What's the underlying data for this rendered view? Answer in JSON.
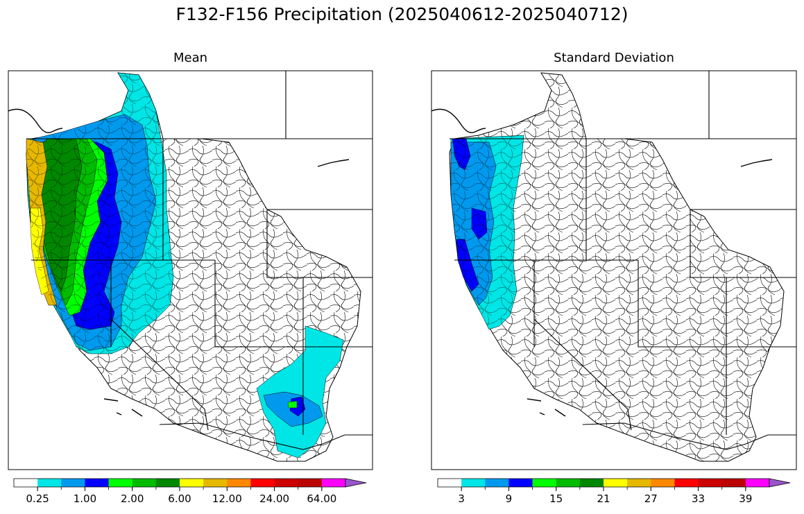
{
  "figure": {
    "title": "F132-F156 Precipitation (2025040612-2025040712)"
  },
  "panels": [
    {
      "id": "mean",
      "title": "Mean",
      "colorbar": {
        "colors": [
          "#ffffff",
          "#00e5e5",
          "#0099ee",
          "#0000ff",
          "#00ff00",
          "#00bb00",
          "#008800",
          "#ffff00",
          "#e6b800",
          "#ff8800",
          "#ff0000",
          "#cc0000",
          "#bb0000",
          "#ff00ff",
          "#9955cc"
        ],
        "tick_labels": [
          "0.25",
          "1.00",
          "2.00",
          "6.00",
          "12.00",
          "24.00",
          "64.00"
        ],
        "extend": "max"
      },
      "legend_levels": [
        "0",
        "0.1",
        "0.25",
        "0.5",
        "1.00",
        "1.5",
        "2.00",
        "4",
        "6.00",
        "8",
        "12.00",
        "16",
        "24.00",
        "32",
        "64.00",
        "96"
      ]
    },
    {
      "id": "stddev",
      "title": "Standard Deviation",
      "colorbar": {
        "colors": [
          "#ffffff",
          "#00e5e5",
          "#0099ee",
          "#0000ff",
          "#00ff00",
          "#00bb00",
          "#008800",
          "#ffff00",
          "#e6b800",
          "#ff8800",
          "#ff0000",
          "#cc0000",
          "#bb0000",
          "#ff00ff",
          "#9955cc"
        ],
        "tick_labels": [
          "3",
          "9",
          "15",
          "21",
          "27",
          "33",
          "39"
        ],
        "extend": "max"
      }
    }
  ],
  "map": {
    "region": "Western United States river basins",
    "projection": "lat-lon"
  }
}
